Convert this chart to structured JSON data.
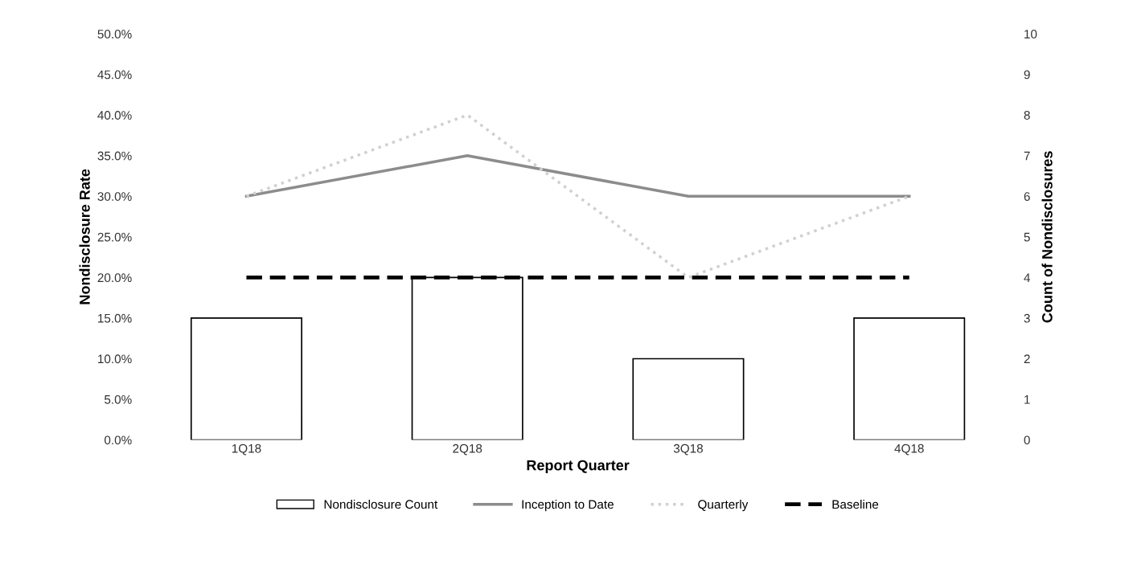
{
  "chart_data": {
    "type": "bar",
    "xlabel": "Report Quarter",
    "ylabel": "Nondisclosure Rate",
    "y2label": "Count of Nondisclosures",
    "categories": [
      "1Q18",
      "2Q18",
      "3Q18",
      "4Q18"
    ],
    "series": [
      {
        "name": "Nondisclosure Count",
        "axis": "y2",
        "color": "#ffffff",
        "values": [
          3,
          4,
          2,
          3
        ]
      },
      {
        "name": "Inception to Date",
        "type": "line",
        "color": "#8c8c8c",
        "line_style": "solid",
        "values": [
          30,
          35,
          30,
          30
        ]
      },
      {
        "name": "Quarterly",
        "type": "line",
        "color": "#d0d0d0",
        "line_style": "dotted",
        "values": [
          30,
          40,
          20,
          30
        ]
      },
      {
        "name": "Baseline",
        "type": "line",
        "color": "#000000",
        "line_style": "dashed",
        "values": [
          20,
          20,
          20,
          20
        ]
      }
    ],
    "ylim": [
      0,
      50
    ],
    "yticks": [
      {
        "value": 0,
        "label": "0.0%"
      },
      {
        "value": 5,
        "label": "5.0%"
      },
      {
        "value": 10,
        "label": "10.0%"
      },
      {
        "value": 15,
        "label": "15.0%"
      },
      {
        "value": 20,
        "label": "20.0%"
      },
      {
        "value": 25,
        "label": "25.0%"
      },
      {
        "value": 30,
        "label": "30.0%"
      },
      {
        "value": 35,
        "label": "35.0%"
      },
      {
        "value": 40,
        "label": "40.0%"
      },
      {
        "value": 45,
        "label": "45.0%"
      },
      {
        "value": 50,
        "label": "50.0%"
      }
    ],
    "y2lim": [
      0,
      10
    ],
    "y2ticks": [
      0,
      1,
      2,
      3,
      4,
      5,
      6,
      7,
      8,
      9,
      10
    ],
    "grid": false,
    "legend": "bottom",
    "marker": "none"
  }
}
